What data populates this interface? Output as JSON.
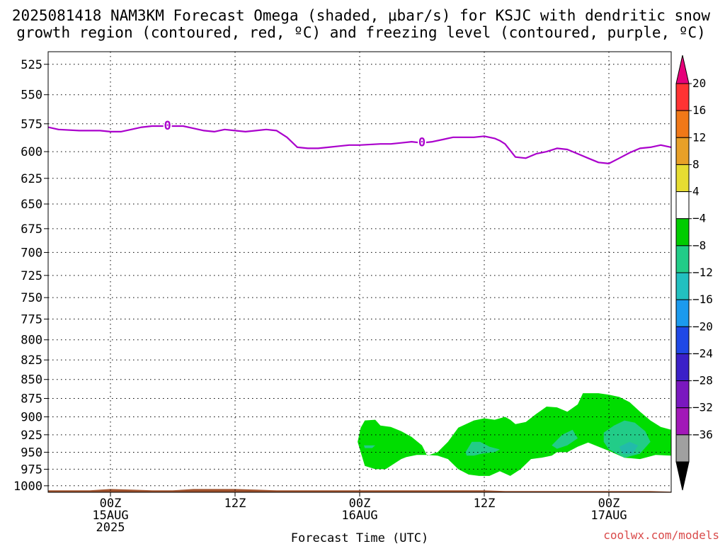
{
  "header": {
    "title_line1": "2025081418 NAM3KM Forecast Omega (shaded, μbar/s) for KSJC with dendritic snow",
    "title_line2": "growth region (contoured, red, ºC) and freezing level (contoured, purple, ºC)"
  },
  "footer": {
    "xlabel": "Forecast Time (UTC)",
    "credit": "coolwx.com/models"
  },
  "colors": {
    "freezing_line": "#aa00cc",
    "ground": "#a0522d",
    "omega_green": "#00dd00",
    "omega_teal": "#22cc88",
    "omega_cyan": "#22bbaa",
    "grid": "#000000"
  },
  "chart_data": {
    "type": "contour",
    "x_unit": "forecast hour (UTC)",
    "xlim": [
      0,
      60
    ],
    "x_ticks": [
      {
        "x": 6,
        "labels": [
          "00Z",
          "15AUG",
          "2025"
        ]
      },
      {
        "x": 18,
        "labels": [
          "12Z"
        ]
      },
      {
        "x": 30,
        "labels": [
          "00Z",
          "16AUG"
        ]
      },
      {
        "x": 42,
        "labels": [
          "12Z"
        ]
      },
      {
        "x": 54,
        "labels": [
          "00Z",
          "17AUG"
        ]
      }
    ],
    "y_axis": {
      "type": "log-pressure",
      "unit": "hPa",
      "ylim": [
        1010,
        515
      ],
      "ticks": [
        525,
        550,
        575,
        600,
        625,
        650,
        675,
        700,
        725,
        750,
        775,
        800,
        825,
        850,
        875,
        900,
        925,
        950,
        975,
        1000
      ]
    },
    "grid": true,
    "colorbar": {
      "unit": "μbar/s",
      "labels": [
        "20",
        "16",
        "12",
        "8",
        "4",
        "-4",
        "-8",
        "-12",
        "-16",
        "-20",
        "-24",
        "-28",
        "-32",
        "-36"
      ],
      "colors": [
        "#e6007a",
        "#ff3333",
        "#f07818",
        "#e8a028",
        "#e6dc32",
        "#ffffff",
        "#00cc00",
        "#22cc88",
        "#22c0c0",
        "#1b9aee",
        "#1f48e6",
        "#3b20c8",
        "#7a18bf",
        "#a218b8",
        "#a0a0a0",
        "#000000"
      ]
    },
    "freezing_level": {
      "label": "0",
      "label_x": [
        11.5,
        36
      ],
      "x": [
        0,
        1,
        3,
        5,
        6,
        7,
        8,
        9,
        10,
        12,
        13,
        14,
        15,
        16,
        17,
        18,
        19,
        20,
        21,
        22,
        23,
        24,
        25,
        26,
        27,
        28,
        29,
        30,
        32,
        33,
        34,
        35,
        36,
        37,
        38,
        39,
        40,
        41,
        42,
        43,
        43.5,
        44,
        45,
        46,
        47,
        48,
        49,
        50,
        51,
        52,
        53,
        54,
        55,
        56,
        57,
        58,
        59,
        60
      ],
      "y": [
        578,
        580,
        581,
        581,
        582,
        582,
        580,
        578,
        577,
        577,
        577,
        579,
        581,
        582,
        580,
        581,
        582,
        581,
        580,
        581,
        587,
        596,
        597,
        597,
        596,
        595,
        594,
        594,
        593,
        593,
        592,
        591,
        592,
        591,
        589,
        587,
        587,
        587,
        586,
        588,
        590,
        593,
        605,
        606,
        602,
        600,
        597,
        598,
        602,
        606,
        610,
        611,
        606,
        601,
        597,
        596,
        594,
        596
      ]
    },
    "omega_regions": [
      {
        "range": "-4 to -8",
        "level": "#00dd00",
        "points": [
          [
            29.8,
            935
          ],
          [
            30.1,
            915
          ],
          [
            30.5,
            905
          ],
          [
            31.5,
            904
          ],
          [
            32,
            912
          ],
          [
            33,
            914
          ],
          [
            34,
            920
          ],
          [
            35,
            928
          ],
          [
            36,
            940
          ],
          [
            36.5,
            955
          ],
          [
            37.5,
            950
          ],
          [
            38.5,
            935
          ],
          [
            39.5,
            915
          ],
          [
            41,
            905
          ],
          [
            42,
            902
          ],
          [
            43,
            904
          ],
          [
            44,
            900
          ],
          [
            44.5,
            904
          ],
          [
            45,
            910
          ],
          [
            46,
            907
          ],
          [
            47,
            896
          ],
          [
            48,
            886
          ],
          [
            49,
            887
          ],
          [
            50,
            893
          ],
          [
            51,
            883
          ],
          [
            51.5,
            868
          ],
          [
            53,
            868
          ],
          [
            54,
            870
          ],
          [
            55,
            873
          ],
          [
            56,
            880
          ],
          [
            57,
            893
          ],
          [
            58,
            905
          ],
          [
            59,
            914
          ],
          [
            60,
            918
          ],
          [
            60,
            955
          ],
          [
            58.5,
            954
          ],
          [
            57,
            960
          ],
          [
            55.5,
            958
          ],
          [
            54,
            948
          ],
          [
            53,
            942
          ],
          [
            52,
            936
          ],
          [
            51,
            942
          ],
          [
            50,
            950
          ],
          [
            49,
            950
          ],
          [
            48.5,
            955
          ],
          [
            47.5,
            958
          ],
          [
            46.5,
            960
          ],
          [
            45.5,
            975
          ],
          [
            44.5,
            985
          ],
          [
            43.5,
            978
          ],
          [
            42.5,
            985
          ],
          [
            41.5,
            985
          ],
          [
            40.5,
            983
          ],
          [
            39.5,
            975
          ],
          [
            38.5,
            960
          ],
          [
            37.5,
            955
          ],
          [
            36.5,
            954
          ],
          [
            35.5,
            954
          ],
          [
            34.5,
            957
          ],
          [
            34,
            960
          ],
          [
            33.5,
            965
          ],
          [
            32.5,
            975
          ],
          [
            31.5,
            975
          ],
          [
            30.5,
            970
          ],
          [
            30.2,
            955
          ]
        ]
      },
      {
        "range": "-8 to -12",
        "level": "#22cc88",
        "points": [
          [
            53.5,
            922
          ],
          [
            54.5,
            912
          ],
          [
            55.5,
            905
          ],
          [
            56.5,
            908
          ],
          [
            57.5,
            920
          ],
          [
            58,
            935
          ],
          [
            57,
            952
          ],
          [
            55.5,
            958
          ],
          [
            54,
            946
          ],
          [
            53.5,
            935
          ]
        ]
      },
      {
        "range": "-8 to -12",
        "level": "#22cc88",
        "points": [
          [
            48.5,
            940
          ],
          [
            49.5,
            925
          ],
          [
            50.5,
            918
          ],
          [
            51,
            930
          ],
          [
            50,
            940
          ],
          [
            49,
            945
          ]
        ]
      },
      {
        "range": "-8 to -12",
        "level": "#22cc88",
        "points": [
          [
            40.2,
            950
          ],
          [
            40.8,
            935
          ],
          [
            41.6,
            935
          ],
          [
            42.5,
            942
          ],
          [
            43.5,
            946
          ],
          [
            43,
            950
          ],
          [
            41.8,
            952
          ],
          [
            41,
            955
          ],
          [
            40.3,
            955
          ]
        ]
      },
      {
        "range": "-8 to -12",
        "level": "#22cc88",
        "points": [
          [
            30.4,
            940
          ],
          [
            31.5,
            940
          ],
          [
            31.2,
            944
          ],
          [
            30.5,
            944
          ]
        ]
      },
      {
        "range": "-12 to -16",
        "level": "#22bbaa",
        "points": [
          [
            55,
            942
          ],
          [
            56,
            935
          ],
          [
            56.8,
            940
          ],
          [
            56.3,
            952
          ],
          [
            55.3,
            952
          ]
        ]
      }
    ],
    "ground": {
      "x": [
        0,
        2,
        4,
        6,
        8,
        10,
        12,
        14,
        16,
        18,
        20,
        22,
        24,
        26,
        28,
        30,
        32,
        34,
        36,
        38,
        40,
        42,
        44,
        46,
        48,
        50,
        52,
        54,
        56,
        58,
        60
      ],
      "top_hPa": [
        1007,
        1007,
        1007,
        1005,
        1006,
        1007,
        1007,
        1005,
        1005,
        1005,
        1006,
        1007,
        1007,
        1007,
        1007,
        1007,
        1007,
        1007,
        1007,
        1007,
        1007,
        1007,
        1008,
        1008,
        1008,
        1008,
        1008,
        1008,
        1008,
        1008,
        1009
      ]
    }
  }
}
